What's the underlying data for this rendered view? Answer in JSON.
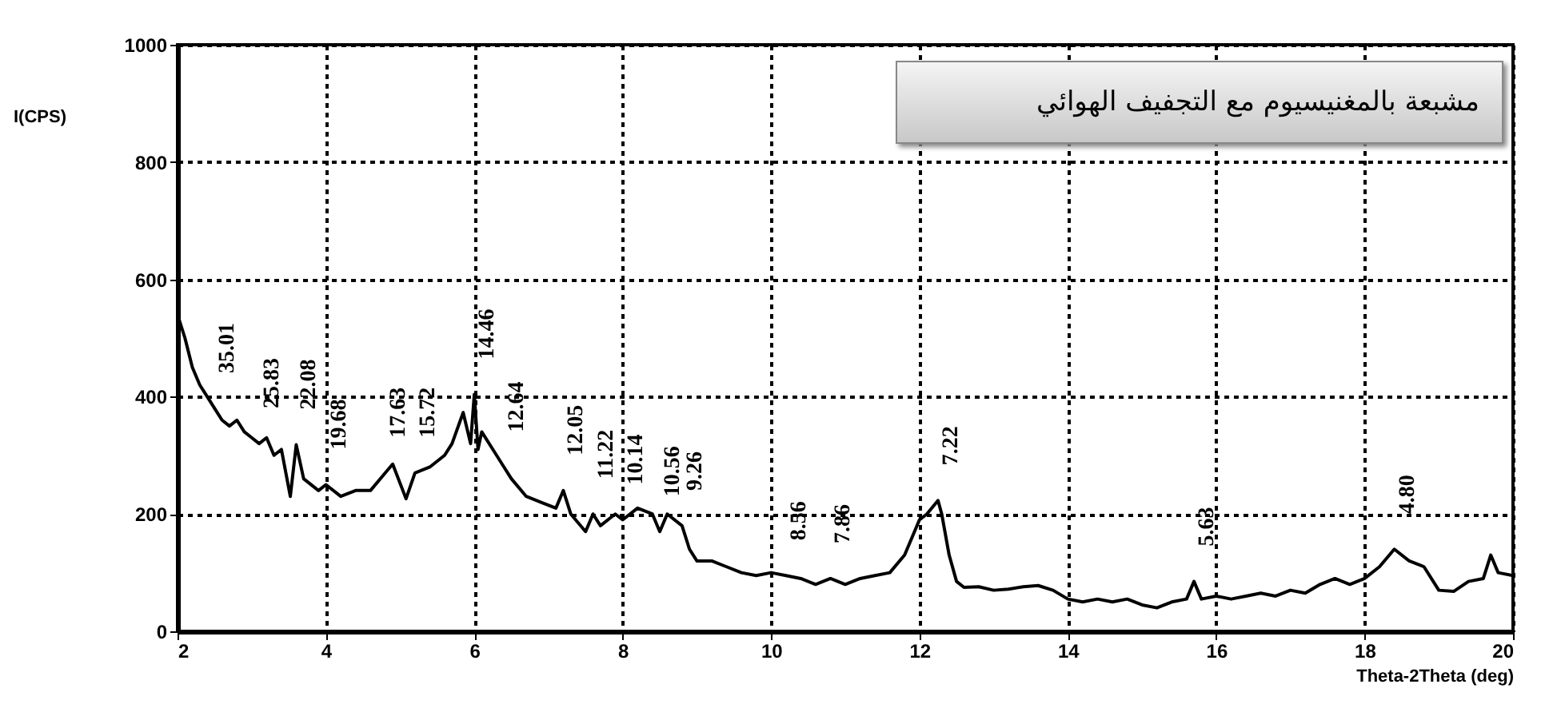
{
  "chart_data": {
    "type": "line",
    "title": "مشبعة بالمغنيسيوم مع التجفيف الهوائي",
    "xlabel": "Theta-2Theta (deg)",
    "ylabel": "I(CPS)",
    "xlim": [
      2,
      20
    ],
    "xticks": [
      2,
      4,
      6,
      8,
      10,
      12,
      14,
      16,
      18,
      20
    ],
    "ylim": [
      0,
      1000
    ],
    "yticks": [
      0,
      200,
      400,
      600,
      800,
      1000
    ],
    "grid": true,
    "marker": "none",
    "line_style": "solid",
    "x": [
      2.0,
      2.1,
      2.2,
      2.3,
      2.4,
      2.5,
      2.6,
      2.7,
      2.8,
      2.9,
      3.0,
      3.1,
      3.2,
      3.3,
      3.4,
      3.52,
      3.6,
      3.7,
      3.9,
      4.0,
      4.2,
      4.4,
      4.6,
      4.8,
      4.9,
      5.08,
      5.2,
      5.4,
      5.6,
      5.7,
      5.85,
      5.95,
      6.0,
      6.05,
      6.1,
      6.3,
      6.4,
      6.5,
      6.7,
      6.9,
      7.1,
      7.2,
      7.3,
      7.5,
      7.6,
      7.7,
      7.9,
      8.0,
      8.2,
      8.4,
      8.5,
      8.6,
      8.8,
      8.9,
      9.0,
      9.2,
      9.4,
      9.6,
      9.8,
      10.0,
      10.2,
      10.4,
      10.6,
      10.8,
      11.0,
      11.2,
      11.4,
      11.6,
      11.8,
      11.9,
      12.0,
      12.1,
      12.25,
      12.3,
      12.4,
      12.5,
      12.6,
      12.8,
      13.0,
      13.2,
      13.4,
      13.6,
      13.8,
      14.0,
      14.2,
      14.4,
      14.6,
      14.8,
      15.0,
      15.2,
      15.4,
      15.6,
      15.7,
      15.8,
      16.0,
      16.2,
      16.4,
      16.6,
      16.8,
      17.0,
      17.2,
      17.4,
      17.6,
      17.8,
      18.0,
      18.2,
      18.4,
      18.6,
      18.8,
      19.0,
      19.2,
      19.4,
      19.6,
      19.7,
      19.8,
      20.0
    ],
    "series": [
      {
        "color": "#000000",
        "values": [
          540,
          500,
          450,
          420,
          400,
          380,
          360,
          350,
          360,
          340,
          330,
          320,
          330,
          300,
          310,
          230,
          318,
          260,
          240,
          250,
          230,
          240,
          240,
          270,
          285,
          226,
          270,
          280,
          300,
          320,
          373,
          320,
          404,
          310,
          340,
          300,
          280,
          260,
          230,
          220,
          210,
          240,
          200,
          170,
          200,
          180,
          200,
          190,
          210,
          200,
          170,
          200,
          180,
          140,
          120,
          120,
          110,
          100,
          95,
          100,
          95,
          90,
          80,
          90,
          80,
          90,
          95,
          100,
          130,
          160,
          190,
          200,
          223,
          200,
          130,
          85,
          75,
          76,
          70,
          72,
          76,
          78,
          70,
          55,
          50,
          55,
          50,
          55,
          45,
          40,
          50,
          55,
          85,
          55,
          60,
          55,
          60,
          65,
          60,
          70,
          65,
          80,
          90,
          80,
          90,
          110,
          140,
          120,
          110,
          70,
          68,
          85,
          90,
          130,
          100,
          95
        ]
      }
    ],
    "annotations": [
      {
        "text": "35.01",
        "x": 2.5,
        "y": 380
      },
      {
        "text": "25.83",
        "x": 3.1,
        "y": 320
      },
      {
        "text": "22.08",
        "x": 3.6,
        "y": 318
      },
      {
        "text": "19.68",
        "x": 4.0,
        "y": 250
      },
      {
        "text": "17.63",
        "x": 4.8,
        "y": 270
      },
      {
        "text": "15.72",
        "x": 5.2,
        "y": 270
      },
      {
        "text": "14.46",
        "x": 6.0,
        "y": 404
      },
      {
        "text": "12.64",
        "x": 6.4,
        "y": 280
      },
      {
        "text": "12.05",
        "x": 7.2,
        "y": 240
      },
      {
        "text": "11.22",
        "x": 7.6,
        "y": 200
      },
      {
        "text": "10.14",
        "x": 8.0,
        "y": 190
      },
      {
        "text": "10.56",
        "x": 8.5,
        "y": 170
      },
      {
        "text": "9.26",
        "x": 8.8,
        "y": 180
      },
      {
        "text": "8.56",
        "x": 10.2,
        "y": 95
      },
      {
        "text": "7.86",
        "x": 10.8,
        "y": 90
      },
      {
        "text": "7.22",
        "x": 12.25,
        "y": 223
      },
      {
        "text": "5.63",
        "x": 15.7,
        "y": 85
      },
      {
        "text": "4.80",
        "x": 18.4,
        "y": 140
      }
    ]
  }
}
